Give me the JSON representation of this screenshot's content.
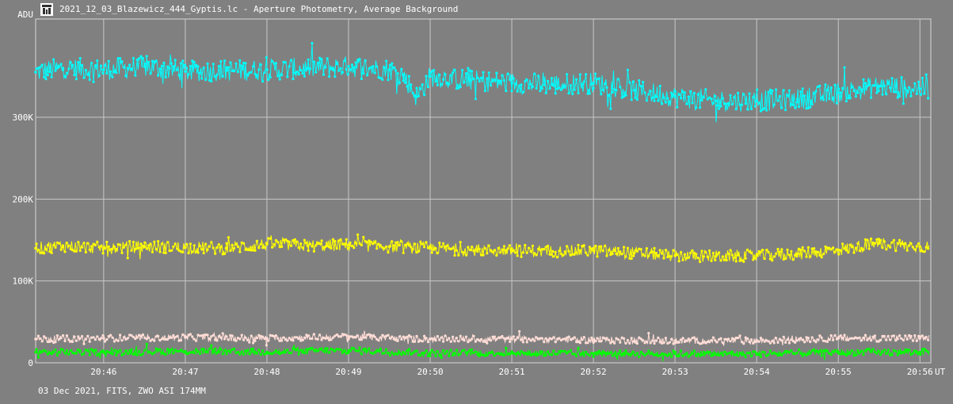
{
  "window": {
    "title": "2021_12_03_Blazewicz_444_Gyptis.lc - Aperture Photometry, Average Background"
  },
  "footer": {
    "text": "03 Dec 2021, FITS, ZWO ASI 174MM"
  },
  "chart_data": {
    "type": "line",
    "ylabel": "ADU",
    "xlabel": "UT",
    "ylim": [
      0,
      420000
    ],
    "xlim": [
      "20:45:10",
      "20:56:08"
    ],
    "x_ticks": [
      "20:46",
      "20:47",
      "20:48",
      "20:49",
      "20:50",
      "20:51",
      "20:52",
      "20:53",
      "20:54",
      "20:55",
      "20:56"
    ],
    "y_ticks": [
      {
        "value": 0,
        "label": "0"
      },
      {
        "value": 100000,
        "label": "100K"
      },
      {
        "value": 200000,
        "label": "200K"
      },
      {
        "value": 300000,
        "label": "300K"
      }
    ],
    "grid": true,
    "series": [
      {
        "color": "#00ffff",
        "x": [
          "20:45:10",
          "20:45:30",
          "20:46:00",
          "20:46:30",
          "20:47:00",
          "20:47:30",
          "20:48:00",
          "20:48:30",
          "20:49:00",
          "20:49:30",
          "20:49:40",
          "20:49:50",
          "20:50:00",
          "20:50:30",
          "20:51:00",
          "20:51:30",
          "20:52:00",
          "20:52:30",
          "20:53:00",
          "20:53:30",
          "20:54:00",
          "20:54:30",
          "20:55:00",
          "20:55:30",
          "20:56:00"
        ],
        "values": [
          355000,
          360000,
          358000,
          362000,
          356000,
          357000,
          358000,
          360000,
          362000,
          358000,
          352000,
          325000,
          350000,
          345000,
          342000,
          340000,
          342000,
          333000,
          325000,
          320000,
          320000,
          322000,
          330000,
          338000,
          335000
        ]
      },
      {
        "color": "#ffff00",
        "x": [
          "20:45:10",
          "20:45:30",
          "20:46:00",
          "20:46:30",
          "20:47:00",
          "20:47:30",
          "20:48:00",
          "20:48:30",
          "20:49:00",
          "20:49:30",
          "20:50:00",
          "20:50:30",
          "20:51:00",
          "20:51:30",
          "20:52:00",
          "20:52:30",
          "20:53:00",
          "20:53:30",
          "20:54:00",
          "20:54:30",
          "20:55:00",
          "20:55:30",
          "20:56:00"
        ],
        "values": [
          140000,
          143000,
          140000,
          142000,
          141000,
          140000,
          145000,
          143000,
          144000,
          142000,
          140000,
          138000,
          137000,
          136000,
          137000,
          134000,
          131000,
          130000,
          131000,
          133000,
          138000,
          146000,
          142000
        ]
      },
      {
        "color": "#ffdcd6",
        "x": [
          "20:45:10",
          "20:46:00",
          "20:47:00",
          "20:48:00",
          "20:49:00",
          "20:50:00",
          "20:51:00",
          "20:52:00",
          "20:53:00",
          "20:54:00",
          "20:55:00",
          "20:56:00"
        ],
        "values": [
          29000,
          30000,
          31000,
          30000,
          32000,
          29000,
          29000,
          28000,
          27000,
          27000,
          30000,
          30000
        ]
      },
      {
        "color": "#00ff00",
        "x": [
          "20:45:10",
          "20:46:00",
          "20:47:00",
          "20:48:00",
          "20:49:00",
          "20:50:00",
          "20:51:00",
          "20:52:00",
          "20:53:00",
          "20:54:00",
          "20:55:00",
          "20:56:00"
        ],
        "values": [
          13000,
          13000,
          14000,
          13000,
          15000,
          12000,
          12000,
          11000,
          11000,
          11000,
          13000,
          13000
        ]
      }
    ]
  }
}
